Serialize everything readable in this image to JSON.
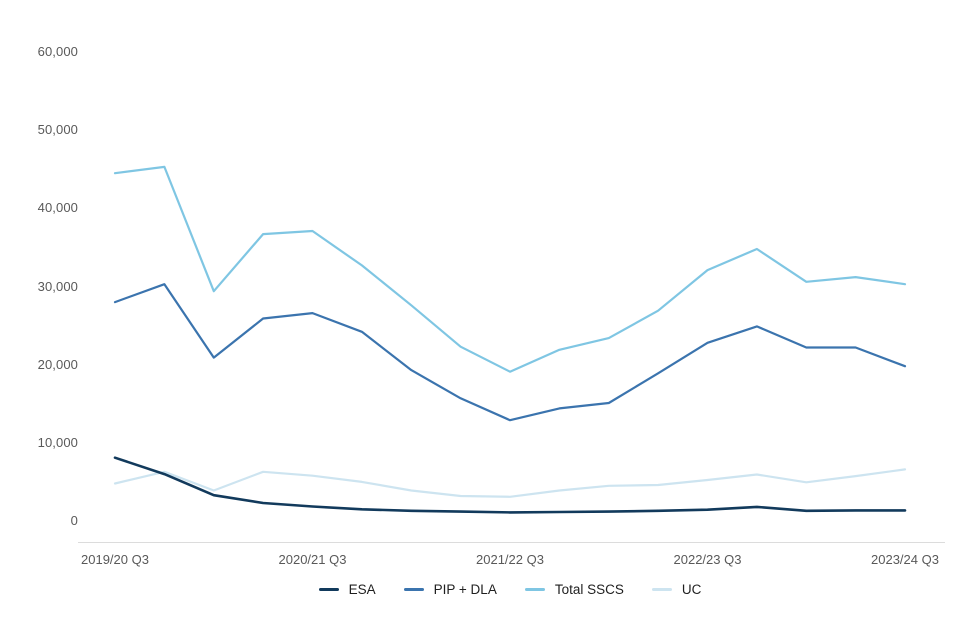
{
  "chart_data": {
    "type": "line",
    "title": "",
    "n_points": 17,
    "x_tick_labels": [
      "2019/20 Q3",
      "2020/21 Q3",
      "2021/22 Q3",
      "2022/23 Q3",
      "2023/24 Q3"
    ],
    "x_tick_indices": [
      0,
      4,
      8,
      12,
      16
    ],
    "y_tick_labels": [
      "0",
      "10,000",
      "20,000",
      "30,000",
      "40,000",
      "50,000",
      "60,000"
    ],
    "y_tick_values": [
      0,
      10000,
      20000,
      30000,
      40000,
      50000,
      60000
    ],
    "ylim": [
      0,
      60000
    ],
    "grid": false,
    "legend_position": "bottom",
    "axis_color": "#dcdcdc",
    "tick_label_color": "#595959",
    "legend_text_color": "#1f1f1f",
    "series": [
      {
        "name": "ESA",
        "color": "#123a5c",
        "stroke_width": 2.6,
        "values": [
          8100,
          6000,
          3300,
          2300,
          1850,
          1500,
          1300,
          1200,
          1100,
          1150,
          1200,
          1300,
          1450,
          1800,
          1300,
          1350,
          1350
        ]
      },
      {
        "name": "PIP + DLA",
        "color": "#3b74ae",
        "stroke_width": 2.2,
        "values": [
          28000,
          30300,
          20900,
          25900,
          26600,
          24200,
          19300,
          15700,
          12900,
          14400,
          15100,
          18900,
          22800,
          24900,
          22200,
          22200,
          19800
        ]
      },
      {
        "name": "Total SSCS",
        "color": "#7fc6e3",
        "stroke_width": 2.2,
        "values": [
          44500,
          45300,
          29400,
          36700,
          37100,
          32700,
          27600,
          22300,
          19100,
          21900,
          23400,
          26900,
          32100,
          34800,
          30600,
          31200,
          30300
        ]
      },
      {
        "name": "UC",
        "color": "#cde4f0",
        "stroke_width": 2.2,
        "values": [
          4800,
          6300,
          3900,
          6300,
          5800,
          5000,
          3900,
          3200,
          3100,
          3900,
          4500,
          4600,
          5250,
          5950,
          4950,
          5750,
          6600
        ]
      }
    ]
  }
}
